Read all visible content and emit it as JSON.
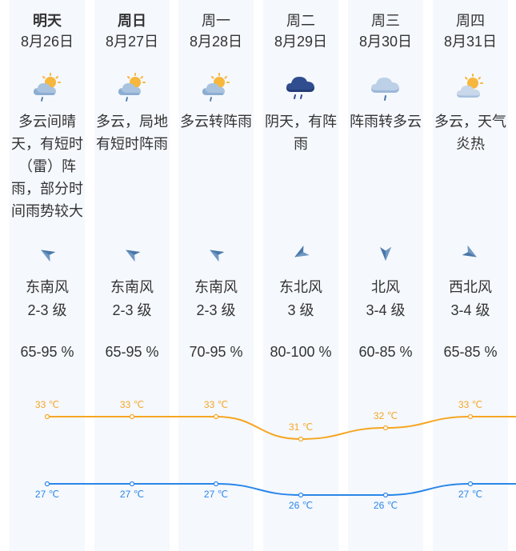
{
  "days": [
    {
      "day": "明天",
      "date": "8月26日",
      "weather_icon": "partly-cloudy-rain-icon",
      "desc": "多云间晴天，有短时（雷）阵雨，部分时间雨势较大",
      "wind_icon": "wind-direction-arrow-icon",
      "wind_dir": "东南风",
      "wind_level": "2-3 级",
      "humidity": "65-95 %",
      "high": "33 ℃",
      "low": "27 ℃"
    },
    {
      "day": "周日",
      "date": "8月27日",
      "weather_icon": "partly-cloudy-rain-icon",
      "desc": "多云，局地有短时阵雨",
      "wind_icon": "wind-direction-arrow-icon",
      "wind_dir": "东南风",
      "wind_level": "2-3 级",
      "humidity": "65-95 %",
      "high": "33 ℃",
      "low": "27 ℃"
    },
    {
      "day": "周一",
      "date": "8月28日",
      "weather_icon": "partly-cloudy-rain-icon",
      "desc": "多云转阵雨",
      "wind_icon": "wind-direction-arrow-icon",
      "wind_dir": "东南风",
      "wind_level": "2-3 级",
      "humidity": "70-95 %",
      "high": "33 ℃",
      "low": "27 ℃"
    },
    {
      "day": "周二",
      "date": "8月29日",
      "weather_icon": "dark-cloud-rain-icon",
      "desc": "阴天，有阵雨",
      "wind_icon": "wind-direction-arrow-icon",
      "wind_dir": "东北风",
      "wind_level": "3 级",
      "humidity": "80-100 %",
      "high": "31 ℃",
      "low": "26 ℃"
    },
    {
      "day": "周三",
      "date": "8月30日",
      "weather_icon": "cloud-rain-icon",
      "desc": "阵雨转多云",
      "wind_icon": "wind-direction-arrow-icon",
      "wind_dir": "北风",
      "wind_level": "3-4 级",
      "humidity": "60-85 %",
      "high": "32 ℃",
      "low": "26 ℃"
    },
    {
      "day": "周四",
      "date": "8月31日",
      "weather_icon": "partly-cloudy-icon",
      "desc": "多云，天气炎热",
      "wind_icon": "wind-direction-arrow-icon",
      "wind_dir": "西北风",
      "wind_level": "3-4 级",
      "humidity": "65-85 %",
      "high": "33 ℃",
      "low": "27 ℃"
    }
  ],
  "chart_data": {
    "type": "line",
    "categories": [
      "8月26日",
      "8月27日",
      "8月28日",
      "8月29日",
      "8月30日",
      "8月31日"
    ],
    "series": [
      {
        "values": [
          33,
          33,
          33,
          31,
          32,
          33
        ],
        "color": "#f5a623"
      },
      {
        "values": [
          27,
          27,
          27,
          26,
          26,
          27
        ],
        "color": "#2a86e8"
      }
    ]
  },
  "colors": {
    "column_bg": "#f5f8fd",
    "wind_arrow": "#4a77a8",
    "high_line": "#f5a623",
    "low_line": "#2a86e8"
  }
}
